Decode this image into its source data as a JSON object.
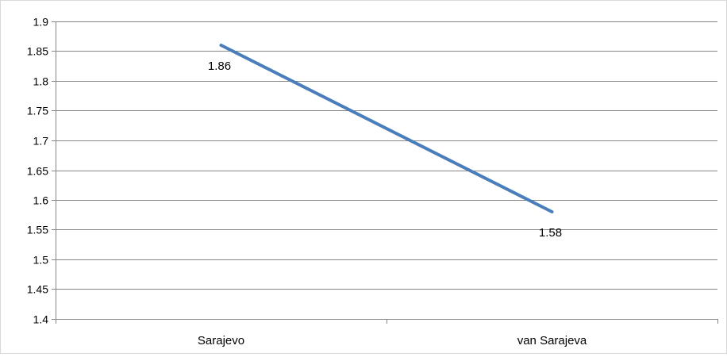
{
  "chart_data": {
    "type": "line",
    "title": "",
    "xlabel": "",
    "ylabel": "",
    "categories": [
      "Sarajevo",
      "van Sarajeva"
    ],
    "series": [
      {
        "values": [
          1.86,
          1.58
        ],
        "data_labels": [
          "1.86",
          "1.58"
        ],
        "color": "#4a7ebb"
      }
    ],
    "ylim": [
      1.4,
      1.9
    ],
    "yticks": [
      1.4,
      1.45,
      1.5,
      1.55,
      1.6,
      1.65,
      1.7,
      1.75,
      1.8,
      1.85,
      1.9
    ],
    "ytick_labels": [
      "1.4",
      "1.45",
      "1.5",
      "1.55",
      "1.6",
      "1.65",
      "1.7",
      "1.75",
      "1.8",
      "1.85",
      "1.9"
    ],
    "grid": true,
    "legend": "none",
    "colors": {
      "grid": "#868686",
      "axis": "#868686",
      "line": "#4a7ebb"
    }
  }
}
